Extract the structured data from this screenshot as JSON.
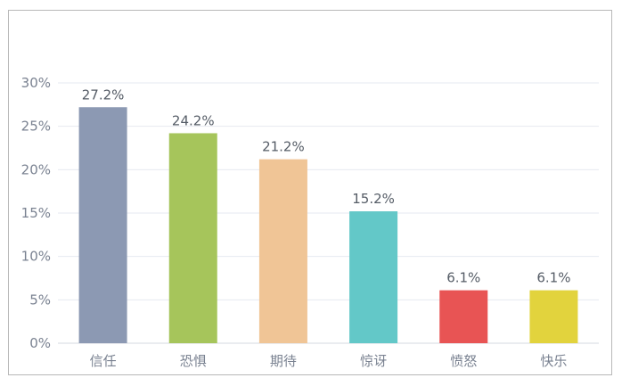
{
  "chart_data": {
    "type": "bar",
    "title": "",
    "xlabel": "",
    "ylabel": "",
    "categories": [
      "信任",
      "恐惧",
      "期待",
      "惊讶",
      "愤怒",
      "快乐"
    ],
    "values": [
      27.2,
      24.2,
      21.2,
      15.2,
      6.1,
      6.1
    ],
    "data_labels": [
      "27.2%",
      "24.2%",
      "21.2%",
      "15.2%",
      "6.1%",
      "6.1%"
    ],
    "y_ticks": [
      0,
      5,
      10,
      15,
      20,
      25,
      30
    ],
    "y_tick_labels": [
      "0%",
      "5%",
      "10%",
      "15%",
      "20%",
      "25%",
      "30%"
    ],
    "ylim": [
      0,
      30
    ],
    "grid": true,
    "legend": "none",
    "colors": [
      "#8c99b3",
      "#a6c55b",
      "#f0c596",
      "#63c8c8",
      "#e85454",
      "#e2d33d"
    ],
    "grid_color": "#e6e9f0",
    "axis_text_color": "#7a8291"
  }
}
